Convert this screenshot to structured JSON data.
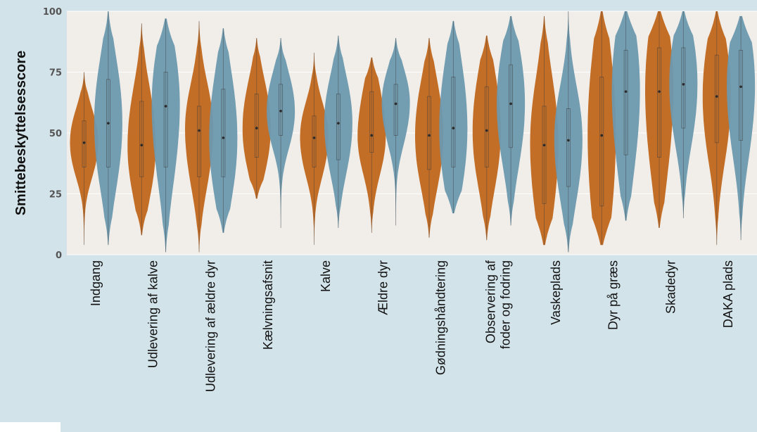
{
  "chart_data": {
    "type": "violin",
    "ylabel": "Smittebeskyttelsesscore",
    "ylim": [
      0,
      100
    ],
    "yticks": [
      "0",
      "25",
      "50",
      "75",
      "100"
    ],
    "categories": [
      "Indgang",
      "Udlevering af kalve",
      "Udlevering af ældre dyr",
      "Kælvningsafsnit",
      "Kalve",
      "Ældre dyr",
      "Gødningshåndtering",
      "Observering af foder og fodring",
      "Vaskeplads",
      "Dyr på græs",
      "Skadedyr",
      "DAKA plads"
    ],
    "category_lines": [
      [
        "Indgang"
      ],
      [
        "Udlevering af kalve"
      ],
      [
        "Udlevering af ældre dyr"
      ],
      [
        "Kælvningsafsnit"
      ],
      [
        "Kalve"
      ],
      [
        "Ældre dyr"
      ],
      [
        "Gødningshåndtering"
      ],
      [
        "Observering af",
        "foder og fodring"
      ],
      [
        "Vaskeplads"
      ],
      [
        "Dyr på græs"
      ],
      [
        "Skadedyr"
      ],
      [
        "DAKA plads"
      ]
    ],
    "colors": {
      "group1": "#c0661c",
      "group2": "#6b98ae",
      "plot_bg": "#f1eeea",
      "figure_bg": "#d3e3ea"
    },
    "grid": true,
    "legend": "none",
    "series": [
      {
        "color": "#c0661c",
        "min": [
          4,
          8,
          1,
          23,
          4,
          9,
          7,
          6,
          4,
          4,
          11,
          4
        ],
        "q1": [
          36,
          32,
          32,
          40,
          36,
          42,
          35,
          36,
          21,
          20,
          40,
          46
        ],
        "median": [
          46,
          45,
          51,
          52,
          48,
          49,
          49,
          51,
          45,
          49,
          67,
          65
        ],
        "q3": [
          55,
          63,
          61,
          66,
          57,
          67,
          65,
          69,
          61,
          73,
          85,
          82
        ],
        "max": [
          75,
          95,
          96,
          89,
          83,
          81,
          89,
          90,
          98,
          100,
          100,
          100
        ]
      },
      {
        "color": "#6b98ae",
        "min": [
          4,
          1,
          9,
          11,
          11,
          12,
          17,
          12,
          1,
          14,
          15,
          6
        ],
        "q1": [
          36,
          36,
          32,
          49,
          39,
          49,
          36,
          44,
          28,
          41,
          52,
          47
        ],
        "median": [
          54,
          61,
          48,
          59,
          54,
          62,
          52,
          62,
          47,
          67,
          70,
          69
        ],
        "q3": [
          72,
          75,
          68,
          70,
          66,
          70,
          73,
          78,
          60,
          84,
          85,
          84
        ],
        "max": [
          100,
          97,
          93,
          89,
          90,
          89,
          96,
          98,
          100,
          100,
          100,
          98
        ]
      }
    ]
  }
}
